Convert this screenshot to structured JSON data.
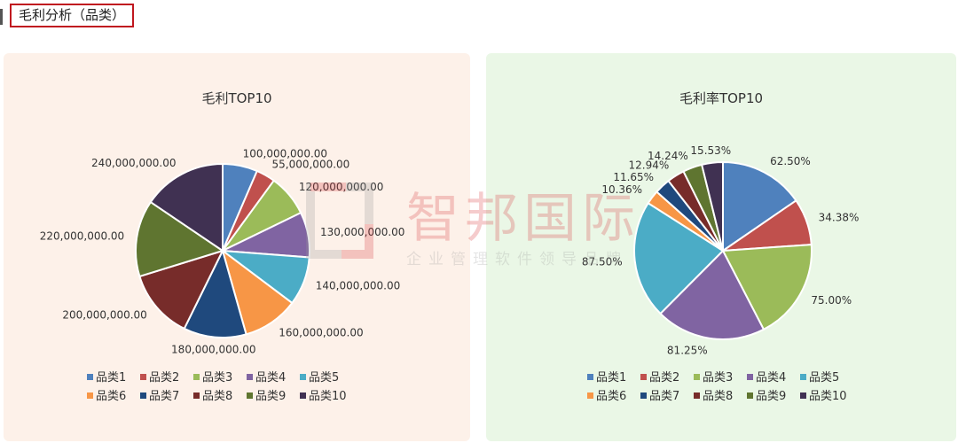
{
  "section": {
    "title": "毛利分析（品类）"
  },
  "watermark": {
    "main": "智邦国际",
    "sub": "企业管理软件领导品牌"
  },
  "chart_data": [
    {
      "type": "pie",
      "title": "毛利TOP10",
      "categories": [
        "品类1",
        "品类2",
        "品类3",
        "品类4",
        "品类5",
        "品类6",
        "品类7",
        "品类8",
        "品类9",
        "品类10"
      ],
      "values": [
        100000000,
        55000000,
        120000000,
        130000000,
        140000000,
        160000000,
        180000000,
        200000000,
        220000000,
        240000000
      ],
      "labels": [
        "100,000,000.00",
        "55,000,000.00",
        "120,000,000.00",
        "130,000,000.00",
        "140,000,000.00",
        "160,000,000.00",
        "180,000,000.00",
        "200,000,000.00",
        "220,000,000.00",
        "240,000,000.00"
      ],
      "colors": [
        "#4f81bd",
        "#c0504d",
        "#9bbb59",
        "#8064a2",
        "#4bacc6",
        "#f79646",
        "#1f497d",
        "#772c2a",
        "#5f7530",
        "#403152"
      ],
      "legend": "bottom"
    },
    {
      "type": "pie",
      "title": "毛利率TOP10",
      "categories": [
        "品类1",
        "品类2",
        "品类3",
        "品类4",
        "品类5",
        "品类6",
        "品类7",
        "品类8",
        "品类9",
        "品类10"
      ],
      "values": [
        62.5,
        34.38,
        75.0,
        81.25,
        87.5,
        10.36,
        11.65,
        12.94,
        14.24,
        15.53
      ],
      "labels": [
        "62.50%",
        "34.38%",
        "75.00%",
        "81.25%",
        "87.50%",
        "10.36%",
        "11.65%",
        "12.94%",
        "14.24%",
        "15.53%"
      ],
      "colors": [
        "#4f81bd",
        "#c0504d",
        "#9bbb59",
        "#8064a2",
        "#4bacc6",
        "#f79646",
        "#1f497d",
        "#772c2a",
        "#5f7530",
        "#403152"
      ],
      "legend": "bottom"
    }
  ]
}
